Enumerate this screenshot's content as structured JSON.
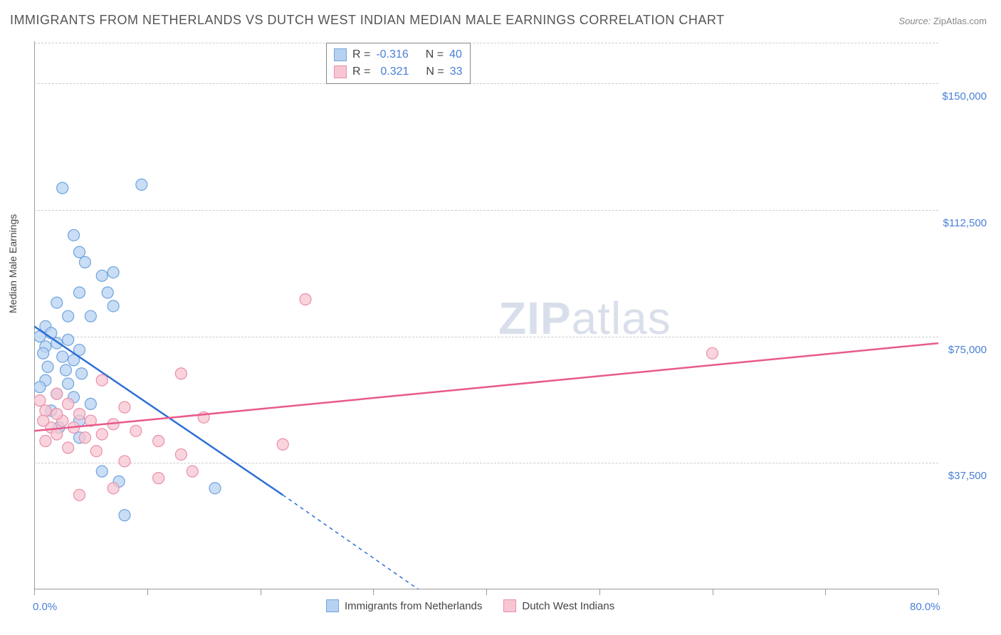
{
  "title": "IMMIGRANTS FROM NETHERLANDS VS DUTCH WEST INDIAN MEDIAN MALE EARNINGS CORRELATION CHART",
  "source_label": "Source:",
  "source_value": "ZipAtlas.com",
  "ylabel": "Median Male Earnings",
  "watermark_zip": "ZIP",
  "watermark_atlas": "atlas",
  "chart": {
    "type": "scatter",
    "xlim": [
      0,
      80
    ],
    "ylim": [
      0,
      162500
    ],
    "x_tick_labels": {
      "min": "0.0%",
      "max": "80.0%"
    },
    "x_tick_positions": [
      0,
      10,
      20,
      30,
      40,
      50,
      60,
      70,
      80
    ],
    "y_gridlines": [
      37500,
      75000,
      112500,
      150000,
      162000
    ],
    "y_tick_labels": [
      "$37,500",
      "$75,000",
      "$112,500",
      "$150,000"
    ],
    "background_color": "#ffffff",
    "grid_color": "#cccccc",
    "axis_color": "#999999",
    "tick_label_color": "#4a7fd8",
    "series": [
      {
        "name": "Immigrants from Netherlands",
        "color_fill": "#b7d1f0",
        "color_stroke": "#6ea3e0",
        "line_color": "#2e6fd6",
        "marker_radius": 8,
        "marker_opacity": 0.75,
        "R": "-0.316",
        "N": "40",
        "trend": {
          "x1": 0,
          "y1": 78000,
          "x2": 22,
          "y2": 28000,
          "dash_x2": 34,
          "dash_y2": 0
        },
        "points": [
          [
            2.5,
            119000
          ],
          [
            9.5,
            120000
          ],
          [
            3.5,
            105000
          ],
          [
            4,
            100000
          ],
          [
            4.5,
            97000
          ],
          [
            6,
            93000
          ],
          [
            7,
            94000
          ],
          [
            4,
            88000
          ],
          [
            6.5,
            88000
          ],
          [
            2,
            85000
          ],
          [
            7,
            84000
          ],
          [
            3,
            81000
          ],
          [
            5,
            81000
          ],
          [
            1,
            78000
          ],
          [
            1.5,
            76000
          ],
          [
            0.5,
            75000
          ],
          [
            2,
            73000
          ],
          [
            3,
            74000
          ],
          [
            1,
            72000
          ],
          [
            4,
            71000
          ],
          [
            0.8,
            70000
          ],
          [
            2.5,
            69000
          ],
          [
            3.5,
            68000
          ],
          [
            1.2,
            66000
          ],
          [
            2.8,
            65000
          ],
          [
            4.2,
            64000
          ],
          [
            1,
            62000
          ],
          [
            3,
            61000
          ],
          [
            0.5,
            60000
          ],
          [
            2,
            58000
          ],
          [
            3.5,
            57000
          ],
          [
            5,
            55000
          ],
          [
            1.5,
            53000
          ],
          [
            4,
            50000
          ],
          [
            6,
            35000
          ],
          [
            7.5,
            32000
          ],
          [
            16,
            30000
          ],
          [
            8,
            22000
          ],
          [
            4,
            45000
          ],
          [
            2.2,
            48000
          ]
        ]
      },
      {
        "name": "Dutch West Indians",
        "color_fill": "#f7c6d2",
        "color_stroke": "#ea8fab",
        "line_color": "#e85a8a",
        "marker_radius": 8,
        "marker_opacity": 0.75,
        "R": "0.321",
        "N": "33",
        "trend": {
          "x1": 0,
          "y1": 47000,
          "x2": 80,
          "y2": 73000
        },
        "points": [
          [
            24,
            86000
          ],
          [
            60,
            70000
          ],
          [
            13,
            64000
          ],
          [
            6,
            62000
          ],
          [
            2,
            58000
          ],
          [
            0.5,
            56000
          ],
          [
            3,
            55000
          ],
          [
            8,
            54000
          ],
          [
            1,
            53000
          ],
          [
            4,
            52000
          ],
          [
            15,
            51000
          ],
          [
            2.5,
            50000
          ],
          [
            5,
            50000
          ],
          [
            7,
            49000
          ],
          [
            1.5,
            48000
          ],
          [
            3.5,
            48000
          ],
          [
            9,
            47000
          ],
          [
            2,
            46000
          ],
          [
            6,
            46000
          ],
          [
            4.5,
            45000
          ],
          [
            1,
            44000
          ],
          [
            11,
            44000
          ],
          [
            22,
            43000
          ],
          [
            3,
            42000
          ],
          [
            5.5,
            41000
          ],
          [
            13,
            40000
          ],
          [
            8,
            38000
          ],
          [
            14,
            35000
          ],
          [
            11,
            33000
          ],
          [
            7,
            30000
          ],
          [
            4,
            28000
          ],
          [
            2,
            52000
          ],
          [
            0.8,
            50000
          ]
        ]
      }
    ],
    "legend_top": {
      "r_label": "R =",
      "n_label": "N ="
    },
    "legend_bottom": {
      "items": [
        "Immigrants from Netherlands",
        "Dutch West Indians"
      ]
    }
  }
}
